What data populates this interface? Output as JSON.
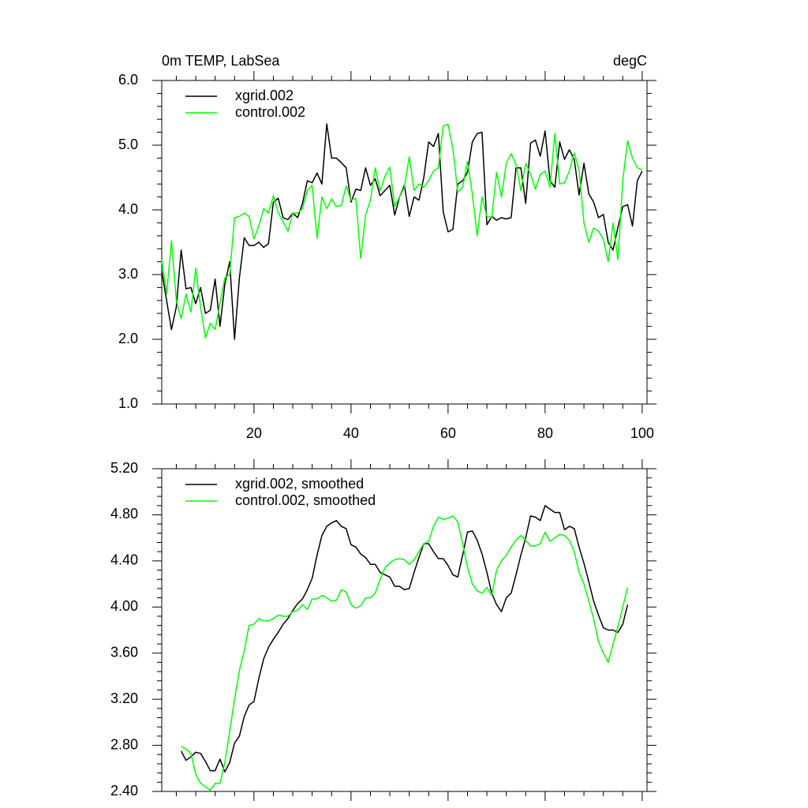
{
  "chart_data": [
    {
      "type": "line",
      "title": "0m TEMP, LabSea",
      "units": "degC",
      "x": [
        1,
        2,
        3,
        4,
        5,
        6,
        7,
        8,
        9,
        10,
        11,
        12,
        13,
        14,
        15,
        16,
        17,
        18,
        19,
        20,
        21,
        22,
        23,
        24,
        25,
        26,
        27,
        28,
        29,
        30,
        31,
        32,
        33,
        34,
        35,
        36,
        37,
        38,
        39,
        40,
        41,
        42,
        43,
        44,
        45,
        46,
        47,
        48,
        49,
        50,
        51,
        52,
        53,
        54,
        55,
        56,
        57,
        58,
        59,
        60,
        61,
        62,
        63,
        64,
        65,
        66,
        67,
        68,
        69,
        70,
        71,
        72,
        73,
        74,
        75,
        76,
        77,
        78,
        79,
        80,
        81,
        82,
        83,
        84,
        85,
        86,
        87,
        88,
        89,
        90,
        91,
        92,
        93,
        94,
        95,
        96,
        97,
        98,
        99,
        100
      ],
      "series": [
        {
          "name": "xgrid.002",
          "color": "#000000",
          "values": [
            3.05,
            2.6,
            2.15,
            2.5,
            3.38,
            2.78,
            2.8,
            2.55,
            2.8,
            2.4,
            2.45,
            2.93,
            2.2,
            2.85,
            3.2,
            2.0,
            2.95,
            3.57,
            3.45,
            3.45,
            3.5,
            3.42,
            3.48,
            4.12,
            4.18,
            3.88,
            3.85,
            3.95,
            3.88,
            4.1,
            4.45,
            4.42,
            4.57,
            4.4,
            5.33,
            4.8,
            4.8,
            4.73,
            4.65,
            4.12,
            4.32,
            4.3,
            4.65,
            4.38,
            4.48,
            4.22,
            4.3,
            4.38,
            3.92,
            4.2,
            4.38,
            3.9,
            4.2,
            4.15,
            4.5,
            5.05,
            4.98,
            5.18,
            3.97,
            3.66,
            3.7,
            4.4,
            4.45,
            4.58,
            5.05,
            5.18,
            5.2,
            3.77,
            3.9,
            3.84,
            3.88,
            3.86,
            3.88,
            4.65,
            4.65,
            4.1,
            5.03,
            5.08,
            4.83,
            5.22,
            4.45,
            4.35,
            5.05,
            4.78,
            4.93,
            4.78,
            4.23,
            4.72,
            4.25,
            4.12,
            3.88,
            3.93,
            3.5,
            3.38,
            3.73,
            4.05,
            4.08,
            3.75,
            4.45,
            4.6
          ]
        },
        {
          "name": "control.002",
          "color": "#00ff00",
          "values": [
            3.23,
            2.7,
            3.52,
            2.6,
            2.32,
            2.7,
            2.42,
            3.1,
            2.5,
            2.02,
            2.25,
            2.15,
            2.55,
            2.95,
            3.0,
            3.88,
            3.9,
            3.95,
            3.9,
            3.55,
            3.75,
            4.02,
            3.95,
            4.22,
            3.95,
            3.82,
            3.67,
            3.95,
            3.95,
            4.02,
            4.3,
            4.38,
            3.56,
            4.2,
            4.02,
            4.17,
            4.05,
            4.07,
            4.37,
            4.15,
            4.18,
            3.25,
            3.92,
            4.15,
            4.65,
            4.3,
            4.52,
            4.66,
            4.05,
            4.2,
            4.35,
            4.82,
            4.3,
            4.4,
            4.35,
            4.45,
            4.6,
            4.65,
            5.3,
            5.32,
            4.95,
            4.27,
            4.35,
            4.75,
            4.25,
            3.6,
            4.2,
            3.9,
            3.88,
            4.58,
            4.2,
            4.72,
            4.87,
            4.7,
            4.3,
            4.72,
            4.55,
            4.32,
            4.55,
            4.6,
            4.35,
            5.18,
            4.4,
            4.42,
            4.6,
            4.88,
            4.62,
            3.8,
            3.5,
            3.72,
            3.67,
            3.55,
            3.2,
            3.8,
            3.23,
            4.45,
            5.07,
            4.8,
            4.65,
            4.62
          ]
        }
      ],
      "xlim": [
        1,
        101
      ],
      "ylim": [
        1,
        6
      ],
      "xticks": [
        20,
        40,
        60,
        80,
        100
      ],
      "yticks": [
        {
          "value": 1,
          "label": "1.0"
        },
        {
          "value": 2,
          "label": "2.0"
        },
        {
          "value": 3,
          "label": "3.0"
        },
        {
          "value": 4,
          "label": "4.0"
        },
        {
          "value": 5,
          "label": "5.0"
        },
        {
          "value": 6,
          "label": "6.0"
        }
      ]
    },
    {
      "type": "line",
      "x": [
        5,
        6,
        7,
        8,
        9,
        10,
        11,
        12,
        13,
        14,
        15,
        16,
        17,
        18,
        19,
        20,
        21,
        22,
        23,
        24,
        25,
        26,
        27,
        28,
        29,
        30,
        31,
        32,
        33,
        34,
        35,
        36,
        37,
        38,
        39,
        40,
        41,
        42,
        43,
        44,
        45,
        46,
        47,
        48,
        49,
        50,
        51,
        52,
        53,
        54,
        55,
        56,
        57,
        58,
        59,
        60,
        61,
        62,
        63,
        64,
        65,
        66,
        67,
        68,
        69,
        70,
        71,
        72,
        73,
        74,
        75,
        76,
        77,
        78,
        79,
        80,
        81,
        82,
        83,
        84,
        85,
        86,
        87,
        88,
        89,
        90,
        91,
        92,
        93,
        94,
        95,
        96,
        97
      ],
      "series": [
        {
          "name": "xgrid.002, smoothed",
          "color": "#000000",
          "values": [
            2.75,
            2.67,
            2.7,
            2.74,
            2.73,
            2.66,
            2.58,
            2.58,
            2.68,
            2.57,
            2.65,
            2.82,
            2.88,
            3.05,
            3.15,
            3.18,
            3.38,
            3.55,
            3.65,
            3.72,
            3.78,
            3.85,
            3.9,
            3.97,
            4.03,
            4.07,
            4.15,
            4.25,
            4.45,
            4.62,
            4.7,
            4.73,
            4.75,
            4.7,
            4.68,
            4.54,
            4.52,
            4.46,
            4.43,
            4.37,
            4.37,
            4.3,
            4.28,
            4.26,
            4.18,
            4.18,
            4.15,
            4.16,
            4.3,
            4.43,
            4.55,
            4.55,
            4.48,
            4.42,
            4.42,
            4.36,
            4.28,
            4.26,
            4.45,
            4.65,
            4.66,
            4.58,
            4.46,
            4.3,
            4.12,
            4.02,
            3.96,
            4.08,
            4.12,
            4.28,
            4.45,
            4.6,
            4.79,
            4.78,
            4.75,
            4.88,
            4.85,
            4.82,
            4.82,
            4.67,
            4.7,
            4.68,
            4.52,
            4.38,
            4.22,
            4.05,
            3.93,
            3.82,
            3.8,
            3.8,
            3.78,
            3.85,
            4.02
          ]
        },
        {
          "name": "control.002, smoothed",
          "color": "#00ff00",
          "values": [
            2.79,
            2.77,
            2.73,
            2.55,
            2.47,
            2.44,
            2.41,
            2.47,
            2.47,
            2.65,
            2.92,
            3.2,
            3.45,
            3.62,
            3.84,
            3.85,
            3.9,
            3.88,
            3.88,
            3.9,
            3.93,
            3.92,
            3.92,
            3.96,
            3.97,
            4.02,
            3.98,
            4.07,
            4.07,
            4.1,
            4.08,
            4.05,
            4.06,
            4.15,
            4.13,
            4.02,
            3.99,
            4.01,
            4.08,
            4.08,
            4.12,
            4.24,
            4.34,
            4.38,
            4.41,
            4.42,
            4.41,
            4.37,
            4.41,
            4.48,
            4.55,
            4.57,
            4.7,
            4.78,
            4.76,
            4.77,
            4.79,
            4.74,
            4.55,
            4.35,
            4.2,
            4.14,
            4.12,
            4.17,
            4.1,
            4.32,
            4.4,
            4.45,
            4.52,
            4.58,
            4.62,
            4.58,
            4.53,
            4.53,
            4.55,
            4.65,
            4.57,
            4.6,
            4.63,
            4.62,
            4.58,
            4.48,
            4.3,
            4.2,
            4.05,
            3.9,
            3.7,
            3.6,
            3.52,
            3.68,
            3.83,
            4.0,
            4.17
          ]
        }
      ],
      "xlim": [
        1,
        101
      ],
      "ylim": [
        2.4,
        5.2
      ],
      "xticks": [
        20,
        40,
        60,
        80,
        100
      ],
      "yticks": [
        {
          "value": 2.4,
          "label": "2.40"
        },
        {
          "value": 2.8,
          "label": "2.80"
        },
        {
          "value": 3.2,
          "label": "3.20"
        },
        {
          "value": 3.6,
          "label": "3.60"
        },
        {
          "value": 4.0,
          "label": "4.00"
        },
        {
          "value": 4.4,
          "label": "4.40"
        },
        {
          "value": 4.8,
          "label": "4.80"
        },
        {
          "value": 5.2,
          "label": "5.20"
        }
      ]
    }
  ]
}
